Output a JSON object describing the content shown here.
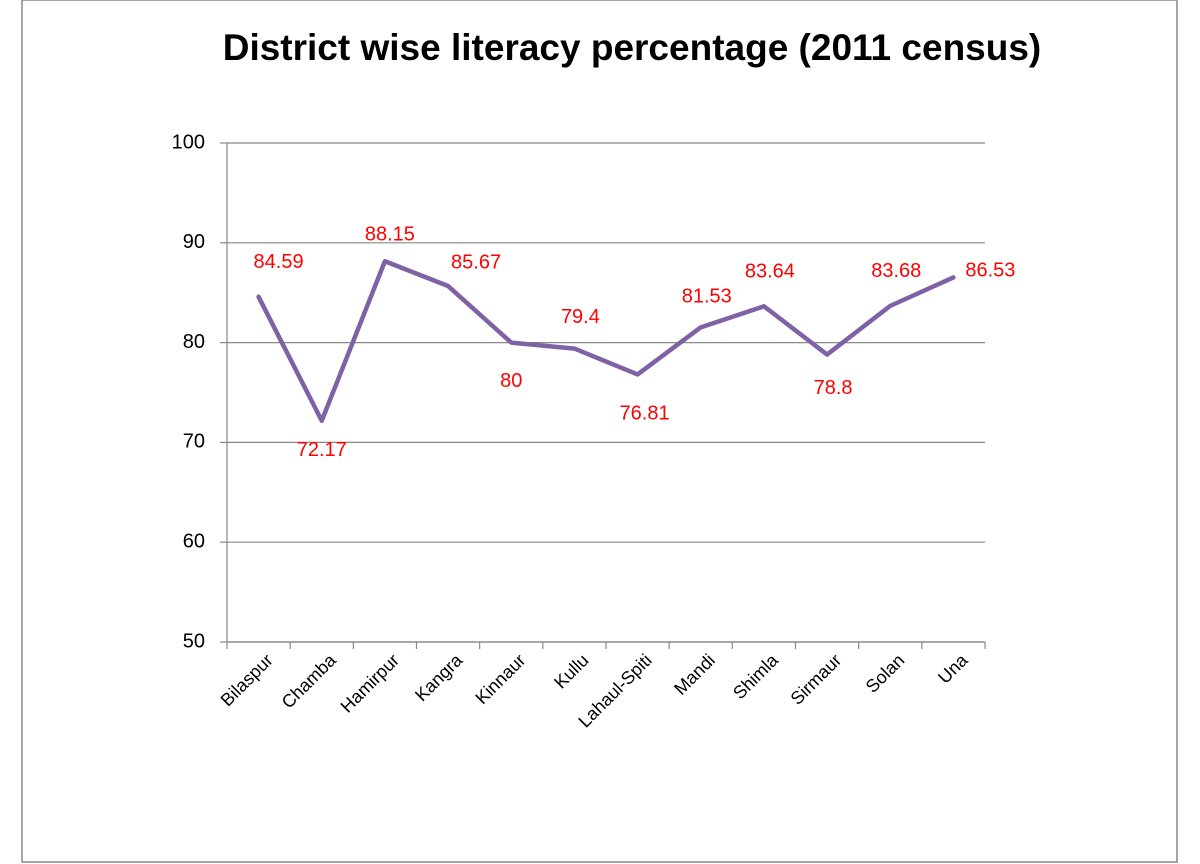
{
  "chart_data": {
    "type": "line",
    "title": "District wise literacy percentage (2011 census)",
    "categories": [
      "Bilaspur",
      "Chamba",
      "Hamirpur",
      "Kangra",
      "Kinnaur",
      "Kullu",
      "Lahaul-Spiti",
      "Mandi",
      "Shimla",
      "Sirmaur",
      "Solan",
      "Una"
    ],
    "values": [
      84.59,
      72.17,
      88.15,
      85.67,
      80,
      79.4,
      76.81,
      81.53,
      83.64,
      78.8,
      83.68,
      86.53
    ],
    "color": "#7f62a6",
    "label_color": "#ff0000",
    "ylim": [
      50,
      100
    ],
    "yticks": [
      50,
      60,
      70,
      80,
      90,
      100
    ],
    "grid": true
  }
}
